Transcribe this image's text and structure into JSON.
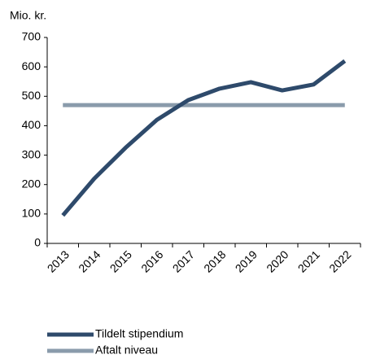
{
  "chart_data": {
    "type": "line",
    "y_label": "Mio. kr.",
    "categories": [
      "2013",
      "2014",
      "2015",
      "2016",
      "2017",
      "2018",
      "2019",
      "2020",
      "2021",
      "2022"
    ],
    "series": [
      {
        "name": "Tildelt stipendium",
        "color": "#2e4a6b",
        "values": [
          95,
          220,
          325,
          420,
          487,
          526,
          548,
          520,
          540,
          620
        ]
      },
      {
        "name": "Aftalt niveau",
        "color": "#8a9bab",
        "values": [
          470,
          470,
          470,
          470,
          470,
          470,
          470,
          470,
          470,
          470
        ]
      }
    ],
    "ylim": [
      0,
      700
    ],
    "yticks": [
      0,
      100,
      200,
      300,
      400,
      500,
      600,
      700
    ],
    "grid": false,
    "legend": "bottom-left"
  }
}
